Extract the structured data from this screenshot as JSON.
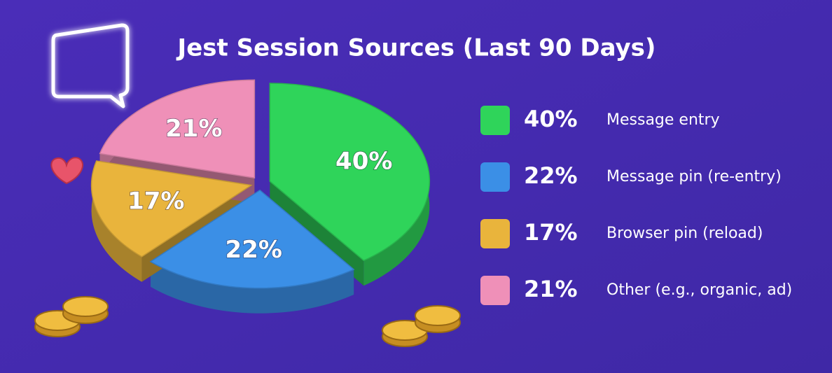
{
  "chart_data": {
    "type": "pie",
    "title": "Jest Session Sources (Last 90 Days)",
    "categories": [
      "Message entry",
      "Message pin (re-entry)",
      "Browser pin (reload)",
      "Other (e.g., organic, ad)"
    ],
    "values": [
      40,
      22,
      17,
      21
    ],
    "value_labels": [
      "40%",
      "22%",
      "17%",
      "21%"
    ],
    "colors": [
      "#2fd45a",
      "#3b8fe6",
      "#e9b43c",
      "#ef90b8"
    ]
  }
}
